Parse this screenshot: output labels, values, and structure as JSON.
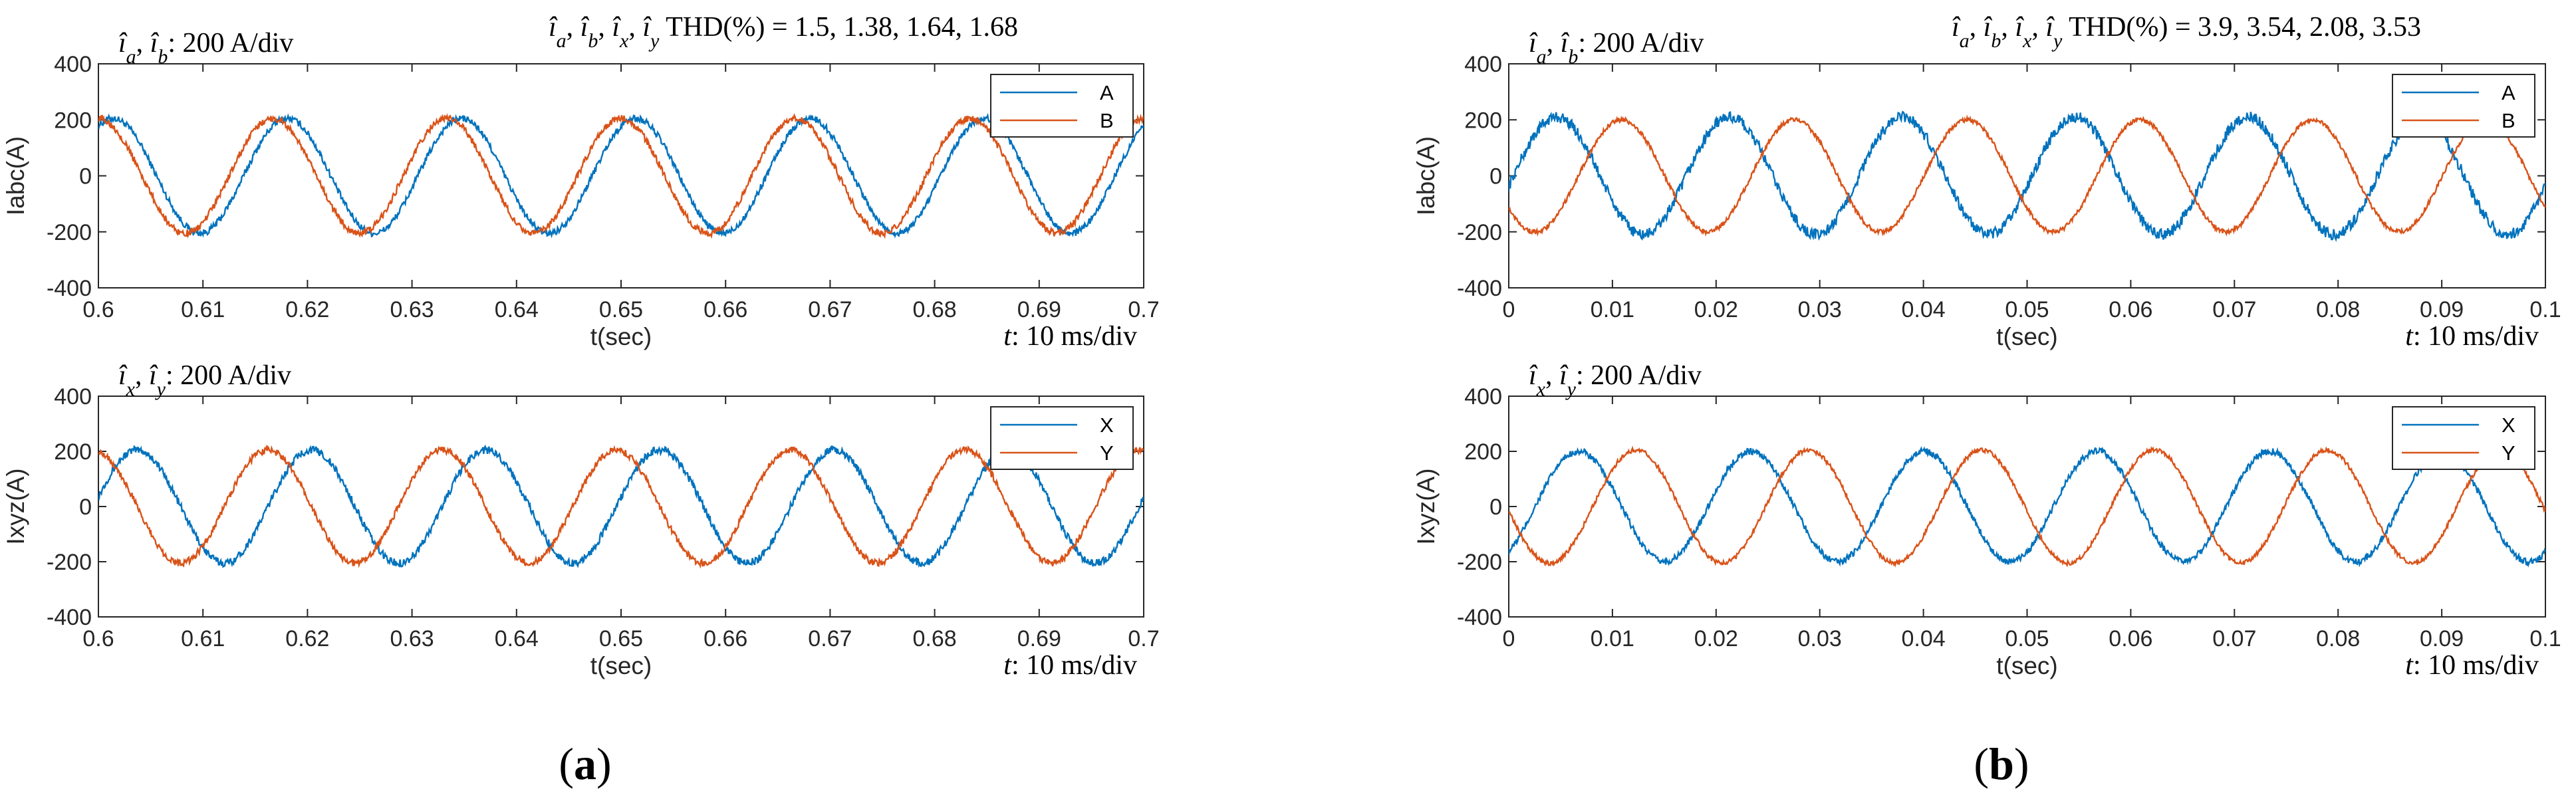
{
  "colors": {
    "series1": "#0072BD",
    "series2": "#D95319",
    "axis": "#262626"
  },
  "chart_data": [
    {
      "type": "line",
      "panel": "a-top",
      "series": [
        {
          "name": "A",
          "amplitude": 205,
          "period": 0.01667,
          "phase_deg": 60,
          "noise": 12
        },
        {
          "name": "B",
          "amplitude": 205,
          "period": 0.01667,
          "phase_deg": 90,
          "noise": 12
        }
      ],
      "xlim": [
        0.6,
        0.7
      ],
      "ylim": [
        -400,
        400
      ],
      "xticks": [
        "0.6",
        "0.61",
        "0.62",
        "0.63",
        "0.64",
        "0.65",
        "0.66",
        "0.67",
        "0.68",
        "0.69",
        "0.7"
      ],
      "yticks": [
        "400",
        "200",
        "0",
        "-200",
        "-400"
      ],
      "xlabel": "t(sec)",
      "ylabel": "Iabc(A)",
      "annotation_left": ": 200 A/div",
      "annotation_right": "THD(%) = 1.5, 1.38, 1.64, 1.68",
      "time_div": ": 10 ms/div",
      "time_div_symbol": "t",
      "legend": [
        "A",
        "B"
      ]
    },
    {
      "type": "line",
      "panel": "a-bottom",
      "series": [
        {
          "name": "X",
          "amplitude": 205,
          "period": 0.01667,
          "phase_deg": 10,
          "noise": 14
        },
        {
          "name": "Y",
          "amplitude": 205,
          "period": 0.01667,
          "phase_deg": 100,
          "noise": 12
        }
      ],
      "xlim": [
        0.6,
        0.7
      ],
      "ylim": [
        -400,
        400
      ],
      "xticks": [
        "0.6",
        "0.61",
        "0.62",
        "0.63",
        "0.64",
        "0.65",
        "0.66",
        "0.67",
        "0.68",
        "0.69",
        "0.7"
      ],
      "yticks": [
        "400",
        "200",
        "0",
        "-200",
        "-400"
      ],
      "xlabel": "t(sec)",
      "ylabel": "Ixyz(A)",
      "annotation_left": ": 200 A/div",
      "time_div": ": 10 ms/div",
      "time_div_symbol": "t",
      "legend": [
        "X",
        "Y"
      ]
    },
    {
      "type": "line",
      "panel": "b-top",
      "series": [
        {
          "name": "A",
          "amplitude": 210,
          "period": 0.01667,
          "phase_deg": -10,
          "noise": 20
        },
        {
          "name": "B",
          "amplitude": 200,
          "period": 0.01667,
          "phase_deg": -145,
          "noise": 8
        }
      ],
      "xlim": [
        0,
        0.1
      ],
      "ylim": [
        -400,
        400
      ],
      "xticks": [
        "0",
        "0.01",
        "0.02",
        "0.03",
        "0.04",
        "0.05",
        "0.06",
        "0.07",
        "0.08",
        "0.09",
        "0.1"
      ],
      "yticks": [
        "400",
        "200",
        "0",
        "-200",
        "-400"
      ],
      "xlabel": "t(sec)",
      "ylabel": "Iabc(A)",
      "annotation_left": ": 200 A/div",
      "annotation_right": "THD(%) = 3.9, 3.54, 2.08, 3.53",
      "time_div": ": 10 ms/div",
      "time_div_symbol": "t",
      "legend": [
        "A",
        "B"
      ]
    },
    {
      "type": "line",
      "panel": "b-bottom",
      "series": [
        {
          "name": "X",
          "amplitude": 200,
          "period": 0.01667,
          "phase_deg": -55,
          "noise": 12
        },
        {
          "name": "Y",
          "amplitude": 205,
          "period": 0.01667,
          "phase_deg": -175,
          "noise": 8
        }
      ],
      "xlim": [
        0,
        0.1
      ],
      "ylim": [
        -400,
        400
      ],
      "xticks": [
        "0",
        "0.01",
        "0.02",
        "0.03",
        "0.04",
        "0.05",
        "0.06",
        "0.07",
        "0.08",
        "0.09",
        "0.1"
      ],
      "yticks": [
        "400",
        "200",
        "0",
        "-200",
        "-400"
      ],
      "xlabel": "t(sec)",
      "ylabel": "Ixyz(A)",
      "annotation_left": ": 200 A/div",
      "time_div": ": 10 ms/div",
      "time_div_symbol": "t",
      "legend": [
        "X",
        "Y"
      ]
    }
  ],
  "labels": {
    "a": {
      "open": "(",
      "letter": "a",
      "close": ")"
    },
    "b": {
      "open": "(",
      "letter": "b",
      "close": ")"
    }
  },
  "symbols": {
    "ia_ib": [
      "i",
      "a",
      "i",
      "b"
    ],
    "ix_iy": [
      "i",
      "x",
      "i",
      "y"
    ],
    "all4": [
      "i",
      "a",
      "i",
      "b",
      "i",
      "x",
      "i",
      "y"
    ]
  }
}
